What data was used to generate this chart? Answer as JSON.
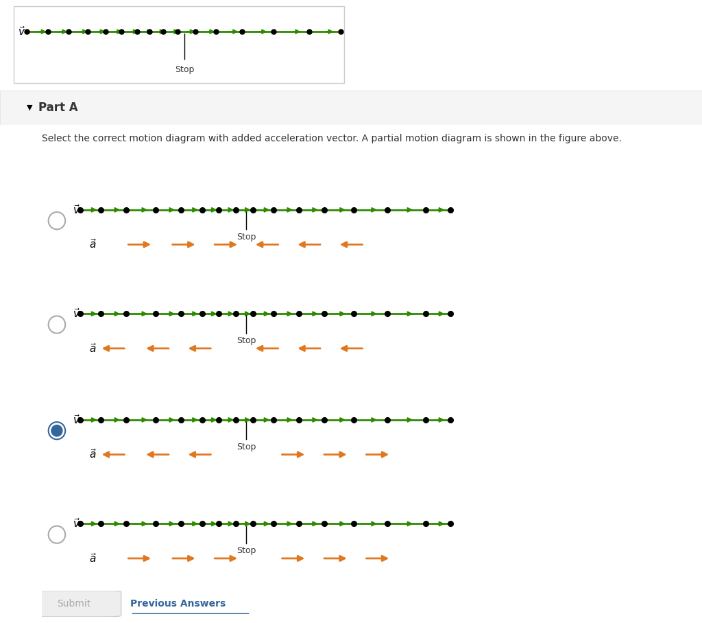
{
  "bg_top": "#e8f4f8",
  "bg_white": "#ffffff",
  "bg_light_gray": "#f5f5f5",
  "green": "#2e8b00",
  "orange": "#e07820",
  "black": "#000000",
  "dark_gray": "#333333",
  "part_a_text": "Part A",
  "instruction": "Select the correct motion diagram with added acceleration vector. A partial motion diagram is shown in the figure above.",
  "stop_label": "Stop",
  "submit_text": "Submit",
  "prev_answers_text": "Previous Answers",
  "options": [
    {
      "accel_dirs": [
        1,
        1,
        1,
        -1,
        -1,
        -1
      ],
      "selected": false
    },
    {
      "accel_dirs": [
        -1,
        -1,
        -1,
        -1,
        -1,
        -1
      ],
      "selected": false
    },
    {
      "accel_dirs": [
        -1,
        -1,
        -1,
        1,
        1,
        1
      ],
      "selected": true
    },
    {
      "accel_dirs": [
        1,
        1,
        1,
        1,
        1,
        1
      ],
      "selected": false
    }
  ]
}
